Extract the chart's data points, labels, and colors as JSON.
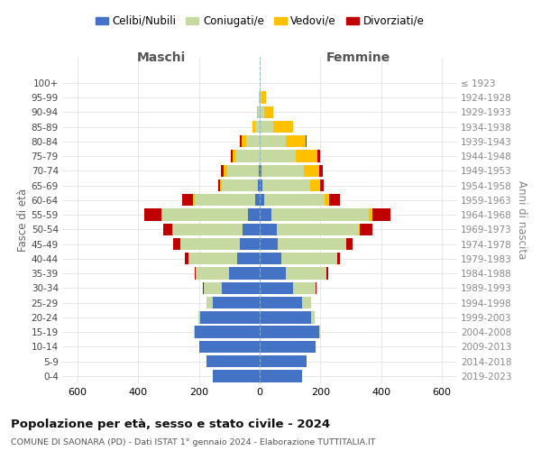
{
  "age_groups": [
    "0-4",
    "5-9",
    "10-14",
    "15-19",
    "20-24",
    "25-29",
    "30-34",
    "35-39",
    "40-44",
    "45-49",
    "50-54",
    "55-59",
    "60-64",
    "65-69",
    "70-74",
    "75-79",
    "80-84",
    "85-89",
    "90-94",
    "95-99",
    "100+"
  ],
  "birth_years": [
    "2019-2023",
    "2014-2018",
    "2009-2013",
    "2004-2008",
    "1999-2003",
    "1994-1998",
    "1989-1993",
    "1984-1988",
    "1979-1983",
    "1974-1978",
    "1969-1973",
    "1964-1968",
    "1959-1963",
    "1954-1958",
    "1949-1953",
    "1944-1948",
    "1939-1943",
    "1934-1938",
    "1929-1933",
    "1924-1928",
    "≤ 1923"
  ],
  "males": {
    "celibe": [
      155,
      175,
      200,
      215,
      195,
      155,
      125,
      100,
      75,
      65,
      55,
      40,
      15,
      5,
      3,
      0,
      0,
      0,
      0,
      0,
      0
    ],
    "coniugato": [
      0,
      0,
      0,
      3,
      8,
      20,
      60,
      110,
      160,
      195,
      230,
      280,
      200,
      120,
      105,
      80,
      45,
      15,
      5,
      2,
      0
    ],
    "vedovo": [
      0,
      0,
      0,
      0,
      0,
      0,
      0,
      0,
      0,
      0,
      3,
      5,
      5,
      5,
      10,
      8,
      15,
      10,
      5,
      0,
      0
    ],
    "divorziato": [
      0,
      0,
      0,
      0,
      0,
      0,
      3,
      5,
      10,
      25,
      30,
      55,
      35,
      8,
      10,
      8,
      5,
      0,
      0,
      0,
      0
    ]
  },
  "females": {
    "nubile": [
      140,
      155,
      185,
      195,
      170,
      140,
      110,
      85,
      70,
      60,
      55,
      40,
      15,
      10,
      5,
      0,
      0,
      0,
      0,
      0,
      0
    ],
    "coniugata": [
      0,
      0,
      0,
      3,
      10,
      30,
      75,
      135,
      185,
      225,
      270,
      320,
      200,
      155,
      140,
      120,
      85,
      45,
      15,
      5,
      0
    ],
    "vedova": [
      0,
      0,
      0,
      0,
      0,
      0,
      0,
      0,
      0,
      0,
      5,
      10,
      15,
      35,
      50,
      70,
      65,
      65,
      30,
      15,
      0
    ],
    "divorziata": [
      0,
      0,
      0,
      0,
      0,
      0,
      3,
      5,
      10,
      20,
      40,
      60,
      35,
      12,
      12,
      8,
      5,
      0,
      0,
      0,
      0
    ]
  },
  "colors": {
    "celibe": "#4472c4",
    "coniugato": "#c5d9a0",
    "vedovo": "#ffc000",
    "divorziato": "#c00000"
  },
  "title": "Popolazione per età, sesso e stato civile - 2024",
  "subtitle": "COMUNE DI SAONARA (PD) - Dati ISTAT 1° gennaio 2024 - Elaborazione TUTTITALIA.IT",
  "xlabel_left": "Maschi",
  "xlabel_right": "Femmine",
  "ylabel_left": "Fasce di età",
  "ylabel_right": "Anni di nascita",
  "xlim": 650,
  "legend_labels": [
    "Celibi/Nubili",
    "Coniugati/e",
    "Vedovi/e",
    "Divorziati/e"
  ],
  "background_color": "#ffffff",
  "grid_color": "#cccccc"
}
